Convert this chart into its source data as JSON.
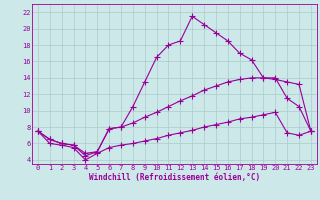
{
  "xlabel": "Windchill (Refroidissement éolien,°C)",
  "bg_color": "#cce8e8",
  "line_color": "#990099",
  "grid_color": "#aacccc",
  "xlim": [
    -0.5,
    23.5
  ],
  "ylim": [
    3.5,
    23.0
  ],
  "xticks": [
    0,
    1,
    2,
    3,
    4,
    5,
    6,
    7,
    8,
    9,
    10,
    11,
    12,
    13,
    14,
    15,
    16,
    17,
    18,
    19,
    20,
    21,
    22,
    23
  ],
  "yticks": [
    4,
    6,
    8,
    10,
    12,
    14,
    16,
    18,
    20,
    22
  ],
  "line1_y": [
    7.5,
    6.5,
    6.0,
    5.8,
    4.8,
    5.0,
    7.8,
    8.0,
    10.5,
    13.5,
    16.5,
    18.0,
    18.5,
    21.5,
    20.5,
    19.5,
    18.5,
    17.0,
    16.2,
    14.0,
    14.0,
    11.5,
    10.5,
    7.5
  ],
  "line2_y": [
    7.5,
    6.5,
    6.0,
    5.8,
    4.5,
    5.0,
    7.8,
    8.0,
    8.5,
    9.2,
    9.8,
    10.5,
    11.2,
    11.8,
    12.5,
    13.0,
    13.5,
    13.8,
    14.0,
    14.0,
    13.8,
    13.5,
    13.2,
    7.5
  ],
  "line3_y": [
    7.5,
    6.0,
    5.8,
    5.5,
    4.0,
    4.8,
    5.5,
    5.8,
    6.0,
    6.3,
    6.6,
    7.0,
    7.3,
    7.6,
    8.0,
    8.3,
    8.6,
    9.0,
    9.2,
    9.5,
    9.8,
    7.3,
    7.0,
    7.5
  ],
  "marker_size": 2.0,
  "linewidth": 0.8,
  "tick_fontsize": 5.0,
  "xlabel_fontsize": 5.5
}
